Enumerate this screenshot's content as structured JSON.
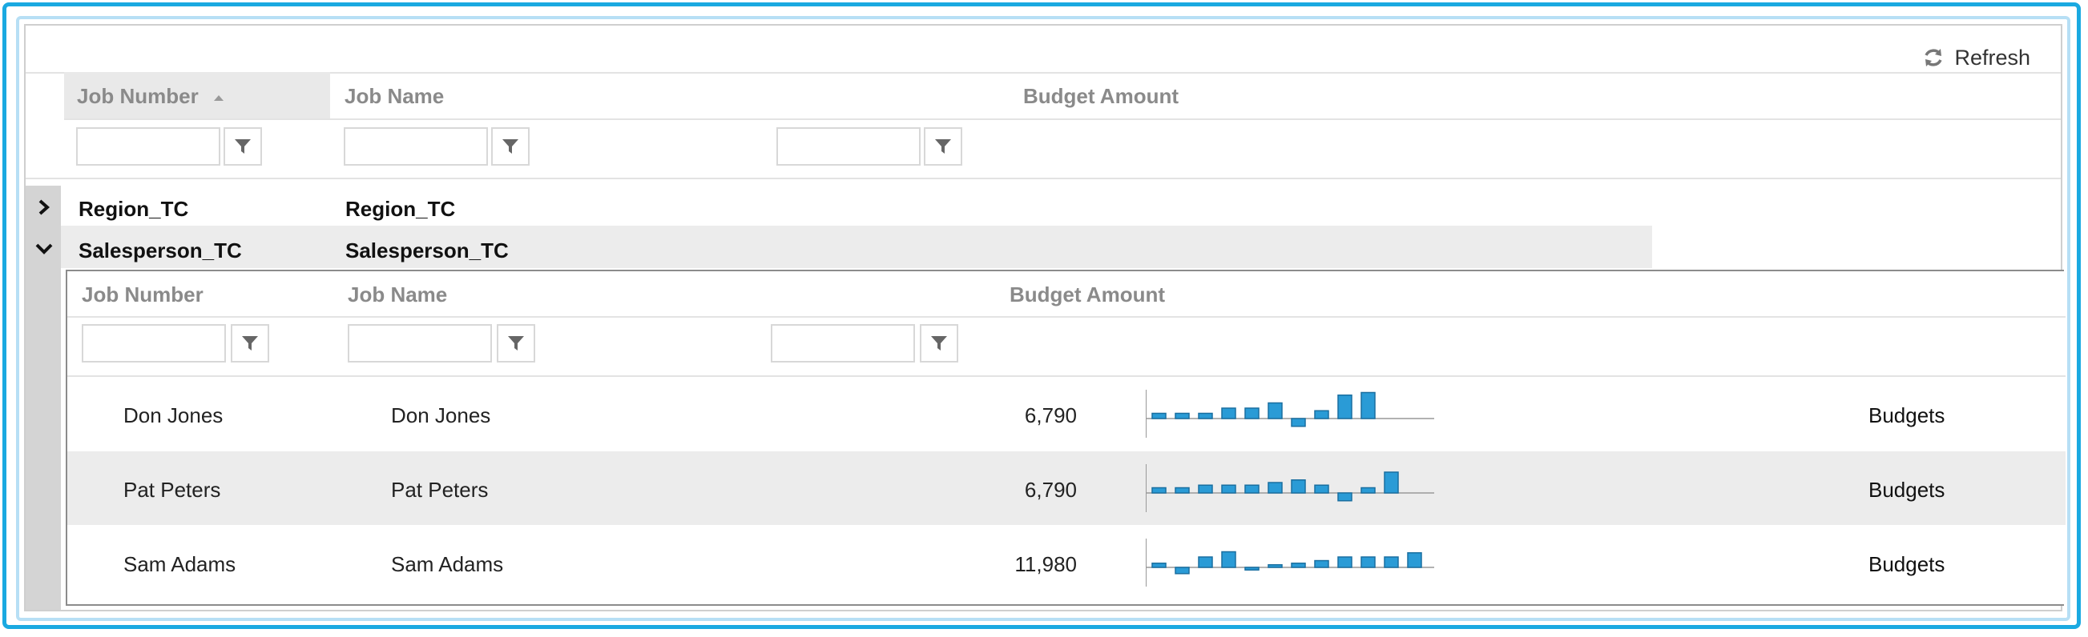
{
  "toolbar": {
    "refresh_label": "Refresh",
    "refresh_icon": "refresh-icon"
  },
  "columns": {
    "job_number": "Job Number",
    "job_name": "Job Name",
    "budget_amount": "Budget Amount"
  },
  "groups": [
    {
      "job_number": "Region_TC",
      "job_name": "Region_TC",
      "expanded": false
    },
    {
      "job_number": "Salesperson_TC",
      "job_name": "Salesperson_TC",
      "expanded": true
    }
  ],
  "detail": {
    "columns": {
      "job_number": "Job Number",
      "job_name": "Job Name",
      "budget_amount": "Budget Amount"
    },
    "rows": [
      {
        "job_number": "Don Jones",
        "job_name": "Don Jones",
        "budget_amount": "6,790",
        "link": "Budgets",
        "sparkline": [
          1,
          1,
          1,
          2,
          2,
          3,
          -1.5,
          1.5,
          4.5,
          5
        ]
      },
      {
        "job_number": "Pat Peters",
        "job_name": "Pat Peters",
        "budget_amount": "6,790",
        "link": "Budgets",
        "sparkline": [
          1,
          1,
          1.5,
          1.5,
          1.5,
          2,
          2.5,
          1.5,
          -1.5,
          1,
          4
        ]
      },
      {
        "job_number": "Sam Adams",
        "job_name": "Sam Adams",
        "budget_amount": "11,980",
        "link": "Budgets",
        "sparkline": [
          0.8,
          -1.2,
          2,
          3,
          -0.5,
          0.5,
          0.8,
          1.3,
          2,
          2,
          2,
          2.8
        ]
      }
    ]
  },
  "colors": {
    "accent_border": "#1aa9e1",
    "spark_fill": "#2a9bd6",
    "group_gutter": "#d4d4d4"
  }
}
